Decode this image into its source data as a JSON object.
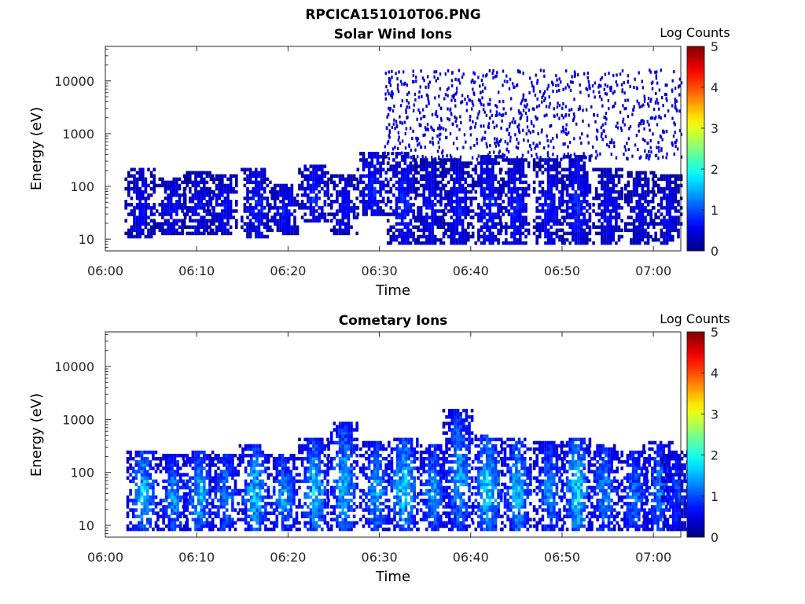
{
  "figure": {
    "filename_title": "RPCICA151010T06.PNG"
  },
  "colorbar": {
    "label": "Log Counts",
    "ticks": [
      "0",
      "1",
      "2",
      "3",
      "4",
      "5"
    ],
    "range": [
      0,
      5
    ],
    "colormap": "jet"
  },
  "chart_data": [
    {
      "type": "heatmap",
      "title": "Solar Wind Ions",
      "xlabel": "Time",
      "ylabel": "Energy (eV)",
      "x_ticks": [
        "06:00",
        "06:10",
        "06:20",
        "06:30",
        "06:40",
        "06:50",
        "07:00"
      ],
      "x_range_minutes": [
        0,
        63
      ],
      "y_ticks": [
        "10",
        "100",
        "1000",
        "10000"
      ],
      "y_scale": "log",
      "y_range": [
        6,
        45000
      ],
      "bursts": [
        {
          "t": 3.8,
          "emin": 10,
          "emax": 200,
          "peak": 0.8
        },
        {
          "t": 7.2,
          "emin": 12,
          "emax": 130,
          "peak": 0.8
        },
        {
          "t": 10.2,
          "emin": 12,
          "emax": 180,
          "peak": 0.8
        },
        {
          "t": 12.8,
          "emin": 12,
          "emax": 150,
          "peak": 0.8
        },
        {
          "t": 16.5,
          "emin": 10,
          "emax": 200,
          "peak": 1.0
        },
        {
          "t": 19.5,
          "emin": 12,
          "emax": 110,
          "peak": 0.9
        },
        {
          "t": 22.8,
          "emin": 20,
          "emax": 230,
          "peak": 1.0
        },
        {
          "t": 26.0,
          "emin": 12,
          "emax": 150,
          "peak": 0.8
        },
        {
          "t": 29.2,
          "emin": 25,
          "emax": 450,
          "peak": 1.0
        },
        {
          "t": 32.5,
          "emin": 7,
          "emax": 400,
          "peak": 1.0
        },
        {
          "t": 35.5,
          "emin": 7,
          "emax": 300,
          "peak": 0.8
        },
        {
          "t": 38.5,
          "emin": 7,
          "emax": 300,
          "peak": 0.9
        },
        {
          "t": 41.8,
          "emin": 7,
          "emax": 350,
          "peak": 1.0
        },
        {
          "t": 44.8,
          "emin": 7,
          "emax": 300,
          "peak": 0.9
        },
        {
          "t": 48.5,
          "emin": 7,
          "emax": 300,
          "peak": 0.9
        },
        {
          "t": 51.5,
          "emin": 7,
          "emax": 350,
          "peak": 1.0
        },
        {
          "t": 55.0,
          "emin": 7,
          "emax": 200,
          "peak": 0.8
        },
        {
          "t": 58.5,
          "emin": 7,
          "emax": 180,
          "peak": 0.7
        },
        {
          "t": 61.5,
          "emin": 7,
          "emax": 150,
          "peak": 0.7
        }
      ],
      "background_scatter": {
        "t_start": 30.5,
        "t_end": 63,
        "emin": 300,
        "emax": 15000,
        "level": 0.5
      }
    },
    {
      "type": "heatmap",
      "title": "Cometary Ions",
      "xlabel": "Time",
      "ylabel": "Energy (eV)",
      "x_ticks": [
        "06:00",
        "06:10",
        "06:20",
        "06:30",
        "06:40",
        "06:50",
        "07:00"
      ],
      "x_range_minutes": [
        0,
        63
      ],
      "y_ticks": [
        "10",
        "100",
        "1000",
        "10000"
      ],
      "y_scale": "log",
      "y_range": [
        6,
        45000
      ],
      "bursts": [
        {
          "t": 4.0,
          "emin": 7,
          "emax": 250,
          "peak": 2.0
        },
        {
          "t": 7.3,
          "emin": 7,
          "emax": 200,
          "peak": 1.7
        },
        {
          "t": 10.2,
          "emin": 7,
          "emax": 250,
          "peak": 1.9
        },
        {
          "t": 13.0,
          "emin": 7,
          "emax": 220,
          "peak": 1.6
        },
        {
          "t": 16.3,
          "emin": 7,
          "emax": 300,
          "peak": 2.0
        },
        {
          "t": 19.4,
          "emin": 7,
          "emax": 200,
          "peak": 1.7
        },
        {
          "t": 22.8,
          "emin": 7,
          "emax": 400,
          "peak": 2.0
        },
        {
          "t": 26.0,
          "emin": 7,
          "emax": 800,
          "peak": 1.9
        },
        {
          "t": 29.5,
          "emin": 7,
          "emax": 350,
          "peak": 1.8
        },
        {
          "t": 32.6,
          "emin": 7,
          "emax": 450,
          "peak": 2.2
        },
        {
          "t": 35.8,
          "emin": 7,
          "emax": 300,
          "peak": 1.7
        },
        {
          "t": 38.6,
          "emin": 7,
          "emax": 1500,
          "peak": 1.8
        },
        {
          "t": 41.8,
          "emin": 7,
          "emax": 500,
          "peak": 2.2
        },
        {
          "t": 45.0,
          "emin": 7,
          "emax": 400,
          "peak": 2.0
        },
        {
          "t": 48.5,
          "emin": 7,
          "emax": 350,
          "peak": 1.6
        },
        {
          "t": 51.5,
          "emin": 7,
          "emax": 400,
          "peak": 2.2
        },
        {
          "t": 54.5,
          "emin": 7,
          "emax": 300,
          "peak": 1.7
        },
        {
          "t": 57.8,
          "emin": 7,
          "emax": 250,
          "peak": 1.5
        },
        {
          "t": 60.5,
          "emin": 7,
          "emax": 350,
          "peak": 1.6
        },
        {
          "t": 62.5,
          "emin": 7,
          "emax": 250,
          "peak": 1.2
        }
      ]
    }
  ]
}
